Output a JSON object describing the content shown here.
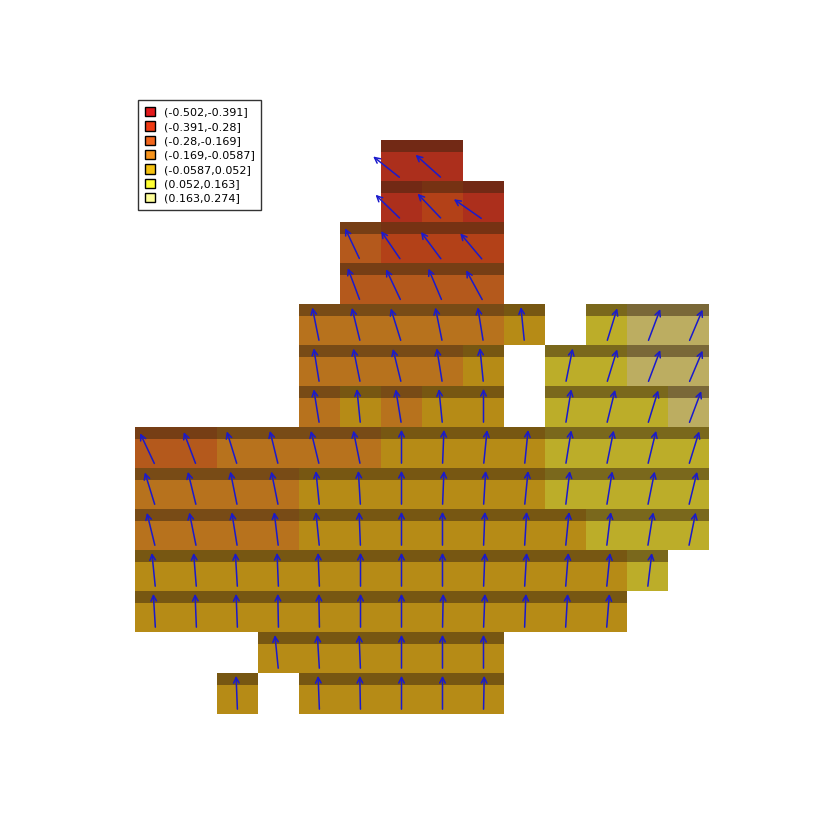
{
  "chart_data": {
    "type": "tile_map",
    "legend": "upper left",
    "tick_labels": false,
    "color": "#1a1acc",
    "bins": [
      -0.502,
      -0.391,
      -0.28,
      -0.169,
      -0.0587,
      0.052,
      0.163,
      0.274
    ],
    "classes": [
      {
        "label": "(-0.502,-0.391]",
        "color": "#e31a1c"
      },
      {
        "label": "(-0.391,-0.28]",
        "color": "#f03b14"
      },
      {
        "label": "(-0.28,-0.169]",
        "color": "#f2661c"
      },
      {
        "label": "(-0.169,-0.0587]",
        "color": "#f7941d"
      },
      {
        "label": "(-0.0587,0.052]",
        "color": "#f5c211"
      },
      {
        "label": "(0.052,0.163]",
        "color": "#ffff33"
      },
      {
        "label": "(0.163,0.274]",
        "color": "#ffff99"
      }
    ],
    "cells": [
      [
        null,
        null,
        null,
        null,
        null,
        null,
        -0.45,
        -0.42,
        null,
        null,
        null,
        null,
        null,
        null
      ],
      [
        null,
        null,
        null,
        null,
        null,
        null,
        -0.4,
        -0.38,
        -0.48,
        null,
        null,
        null,
        null,
        null
      ],
      [
        null,
        null,
        null,
        null,
        null,
        -0.22,
        -0.3,
        -0.32,
        -0.35,
        null,
        null,
        null,
        null,
        null
      ],
      [
        null,
        null,
        null,
        null,
        null,
        -0.18,
        -0.22,
        -0.2,
        -0.25,
        null,
        null,
        null,
        null,
        null
      ],
      [
        null,
        null,
        null,
        null,
        -0.1,
        -0.12,
        -0.15,
        -0.1,
        -0.08,
        -0.05,
        null,
        0.15,
        0.18,
        0.2
      ],
      [
        null,
        null,
        null,
        null,
        -0.08,
        -0.1,
        -0.12,
        -0.08,
        -0.05,
        null,
        0.1,
        0.15,
        0.18,
        0.2
      ],
      [
        null,
        null,
        null,
        null,
        -0.08,
        -0.05,
        -0.08,
        -0.05,
        0.0,
        null,
        0.08,
        0.12,
        0.15,
        0.18
      ],
      [
        -0.22,
        -0.18,
        -0.15,
        -0.12,
        -0.12,
        -0.1,
        0.0,
        0.02,
        0.05,
        0.05,
        0.08,
        0.1,
        0.12,
        0.15
      ],
      [
        -0.15,
        -0.12,
        -0.1,
        -0.1,
        -0.05,
        -0.03,
        0.0,
        0.02,
        0.03,
        0.05,
        0.06,
        0.08,
        0.1,
        0.12
      ],
      [
        -0.12,
        -0.1,
        -0.08,
        -0.06,
        -0.05,
        -0.02,
        0.0,
        0.0,
        0.02,
        0.03,
        0.05,
        0.06,
        0.08,
        0.1
      ],
      [
        -0.05,
        -0.04,
        -0.03,
        -0.02,
        -0.02,
        0.0,
        0.0,
        0.0,
        0.02,
        0.03,
        0.04,
        0.05,
        0.06,
        null
      ],
      [
        -0.03,
        -0.02,
        -0.02,
        -0.01,
        -0.01,
        0.0,
        0.0,
        0.01,
        0.02,
        0.02,
        0.03,
        0.04,
        null,
        null
      ],
      [
        null,
        null,
        null,
        -0.05,
        -0.03,
        -0.02,
        0.0,
        0.0,
        0.0,
        null,
        null,
        null,
        null,
        null
      ],
      [
        null,
        null,
        -0.02,
        null,
        -0.02,
        -0.01,
        0.0,
        0.0,
        0.01,
        null,
        null,
        null,
        null,
        null
      ]
    ]
  }
}
